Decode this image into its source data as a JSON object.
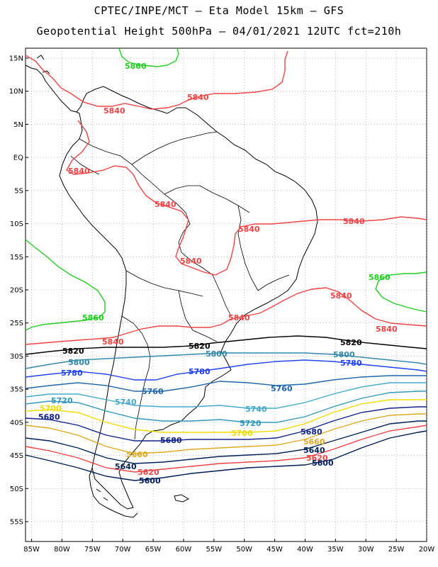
{
  "header": {
    "title_line1": "CPTEC/INPE/MCT –  Eta Model 15km – GFS",
    "title_line2": "Geopotential Height 500hPa – 04/01/2021 12UTC fct=210h"
  },
  "axes": {
    "lat_labels": [
      "15N",
      "10N",
      "5N",
      "EQ",
      "5S",
      "10S",
      "15S",
      "20S",
      "25S",
      "30S",
      "35S",
      "40S",
      "45S",
      "50S",
      "55S"
    ],
    "lat_values": [
      15,
      10,
      5,
      0,
      -5,
      -10,
      -15,
      -20,
      -25,
      -30,
      -35,
      -40,
      -45,
      -50,
      -55
    ],
    "lon_labels": [
      "85W",
      "80W",
      "75W",
      "70W",
      "65W",
      "60W",
      "55W",
      "50W",
      "45W",
      "40W",
      "35W",
      "30W",
      "25W",
      "20W"
    ],
    "lon_values": [
      -85,
      -80,
      -75,
      -70,
      -65,
      -60,
      -55,
      -50,
      -45,
      -40,
      -35,
      -30,
      -25,
      -20
    ],
    "lat_range": [
      -58,
      16.5
    ],
    "lon_range": [
      -86,
      -20
    ]
  },
  "colors": {
    "c5860": "#22cc22",
    "c5840": "#ee4444",
    "c5820": "#000000",
    "c5800": "#3388aa",
    "c5780": "#2244ee",
    "c5760": "#2266aa",
    "c5740": "#44aacc",
    "c5720": "#3399bb",
    "c5700": "#eedd00",
    "c5680": "#112288",
    "c5660": "#ddaa22",
    "c5640": "#002255",
    "c5620": "#ee4444",
    "c5600": "#001a55"
  },
  "contours": [
    {
      "level": "5860",
      "labels": [
        "5860",
        "5860",
        "5860"
      ]
    },
    {
      "level": "5840",
      "labels": [
        "5840",
        "5840",
        "5840",
        "5840",
        "5840",
        "5840",
        "5840",
        "5840",
        "5840",
        "5840",
        "5840"
      ]
    },
    {
      "level": "5820",
      "labels": [
        "5820",
        "5820",
        "5820"
      ]
    },
    {
      "level": "5800",
      "labels": [
        "5800",
        "5800",
        "5800"
      ]
    },
    {
      "level": "5780",
      "labels": [
        "5780",
        "5780",
        "5780"
      ]
    },
    {
      "level": "5760",
      "labels": [
        "5760",
        "5760"
      ]
    },
    {
      "level": "5740",
      "labels": [
        "5740",
        "5740"
      ]
    },
    {
      "level": "5720",
      "labels": [
        "5720",
        "5720"
      ]
    },
    {
      "level": "5700",
      "labels": [
        "5700",
        "5700"
      ]
    },
    {
      "level": "5680",
      "labels": [
        "5680",
        "5680",
        "5680"
      ]
    },
    {
      "level": "5660",
      "labels": [
        "5660",
        "5660"
      ]
    },
    {
      "level": "5640",
      "labels": [
        "5640",
        "5640"
      ]
    },
    {
      "level": "5620",
      "labels": [
        "5620",
        "5620"
      ]
    },
    {
      "level": "5600",
      "labels": [
        "5600",
        "5600"
      ]
    }
  ]
}
